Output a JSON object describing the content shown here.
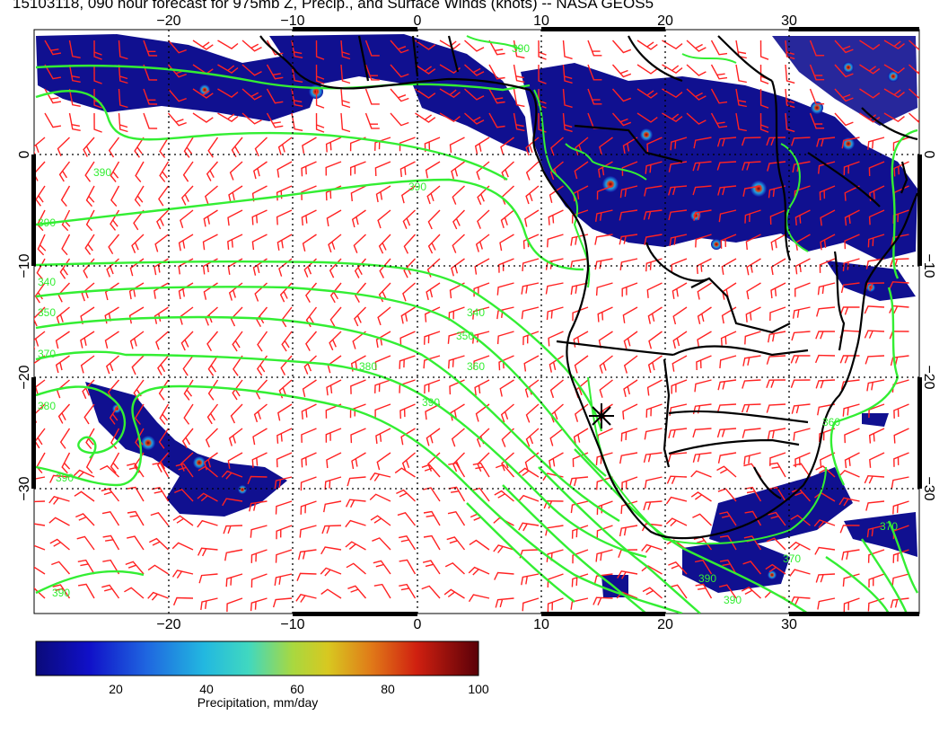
{
  "title": "15103118, 090 hour forecast for 975mb Z, Precip., and Surface Winds (knots) -- NASA GEOS5",
  "map": {
    "lon_labels_top": [
      "−20",
      "−10",
      "0",
      "10",
      "20",
      "30"
    ],
    "lon_labels_bottom": [
      "−20",
      "−10",
      "0",
      "10",
      "20",
      "30"
    ],
    "lat_labels": [
      "0",
      "−10",
      "−20",
      "−30"
    ],
    "lon_ticks": [
      -20,
      -10,
      0,
      10,
      20,
      30
    ],
    "lat_ticks": [
      0,
      -10,
      -20,
      -30
    ],
    "lon_range": [
      -31,
      40
    ],
    "lat_range": [
      -40,
      10
    ],
    "contour_labels": [
      "330",
      "340",
      "350",
      "360",
      "370",
      "380",
      "390"
    ],
    "marker": {
      "symbol": "asterisk",
      "lon": 15,
      "lat": -22.5
    },
    "colors": {
      "contour": "#33ee33",
      "wind_barbs": "#ff2222",
      "coastline": "#000000",
      "grid": "#000000"
    }
  },
  "colorbar": {
    "labels": [
      "20",
      "40",
      "60",
      "80",
      "100"
    ],
    "title": "Precipitation, mm/day",
    "range": [
      0,
      100
    ],
    "colors": [
      "#0a0a7a",
      "#1010c0",
      "#1f5fe0",
      "#22b8e0",
      "#5fe0a0",
      "#c8d820",
      "#e8a020",
      "#e05010",
      "#c00010",
      "#5a0008"
    ]
  }
}
